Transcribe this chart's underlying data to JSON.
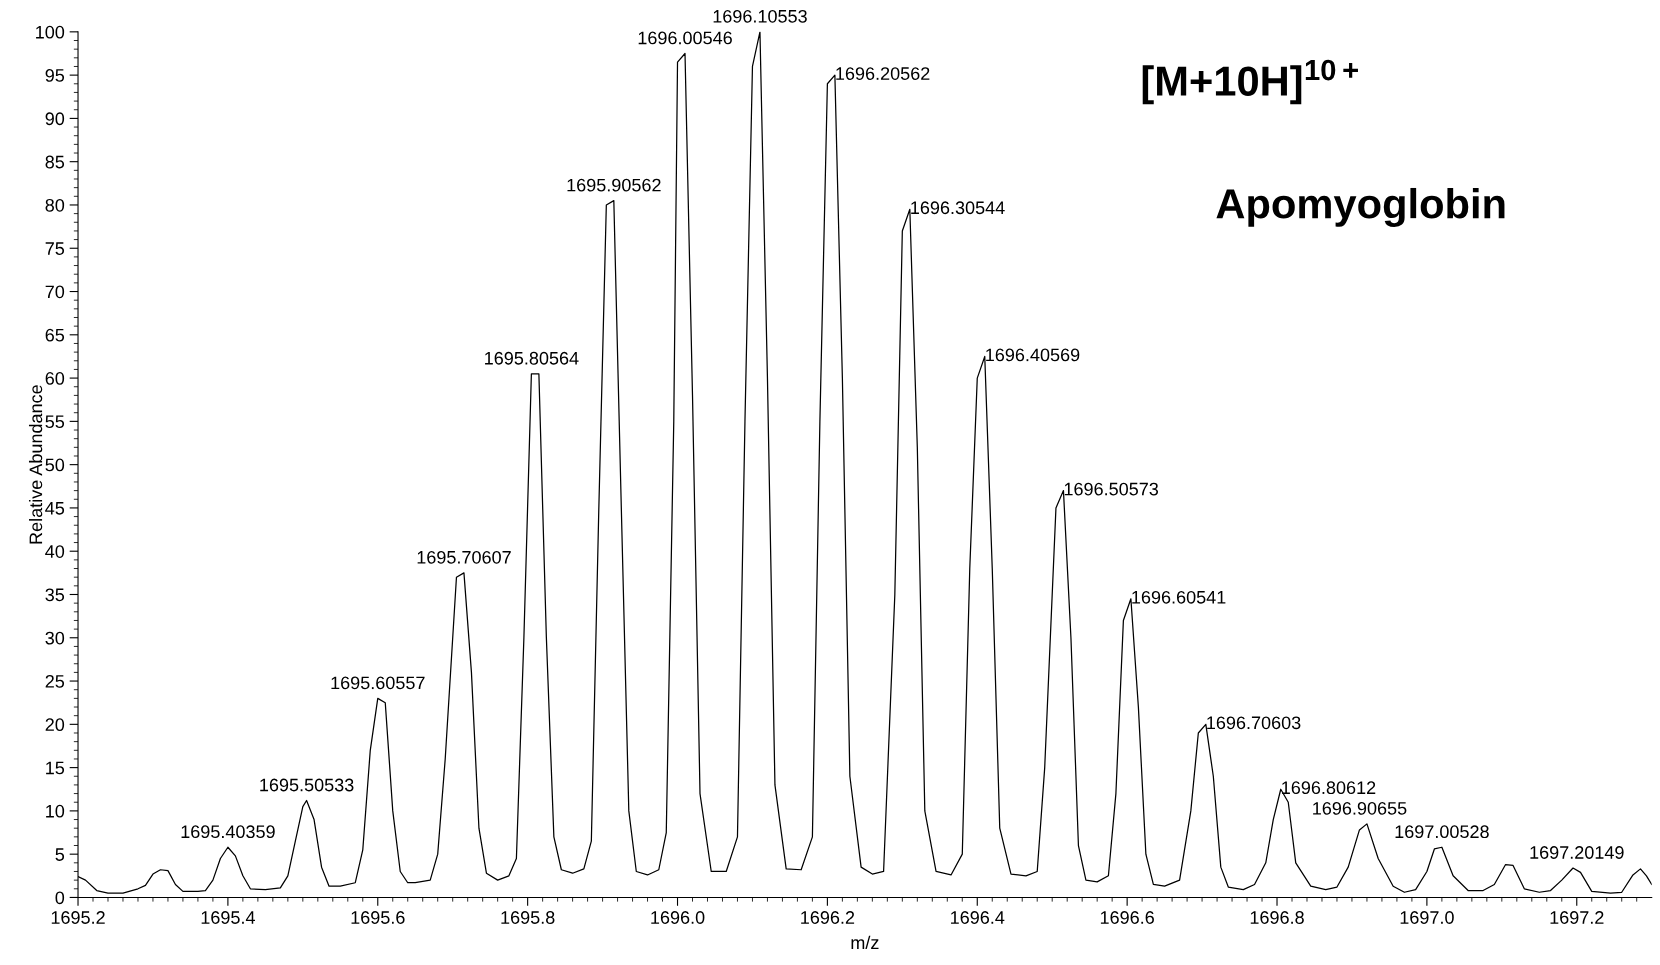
{
  "chart_data": {
    "type": "line",
    "xlabel": "m/z",
    "ylabel": "Relative Abundance",
    "xlim": [
      1695.2,
      1697.3
    ],
    "xticks": [
      {
        "value": 1695.2,
        "label": "1695.2"
      },
      {
        "value": 1695.4,
        "label": "1695.4"
      },
      {
        "value": 1695.6,
        "label": "1695.6"
      },
      {
        "value": 1695.8,
        "label": "1695.8"
      },
      {
        "value": 1696.0,
        "label": "1696.0"
      },
      {
        "value": 1696.2,
        "label": "1696.2"
      },
      {
        "value": 1696.4,
        "label": "1696.4"
      },
      {
        "value": 1696.6,
        "label": "1696.6"
      },
      {
        "value": 1696.8,
        "label": "1696.8"
      },
      {
        "value": 1697.0,
        "label": "1697.0"
      },
      {
        "value": 1697.2,
        "label": "1697.2"
      }
    ],
    "ylim": [
      0,
      100
    ],
    "yticks": [
      0,
      5,
      10,
      15,
      20,
      25,
      30,
      35,
      40,
      45,
      50,
      55,
      60,
      65,
      70,
      75,
      80,
      85,
      90,
      95,
      100
    ],
    "grid": false,
    "legend": false,
    "marker": "none",
    "line_style": "solid",
    "series": [
      {
        "color": "#000000",
        "x": [
          1695.2,
          1695.21,
          1695.225,
          1695.24,
          1695.26,
          1695.28,
          1695.29,
          1695.3,
          1695.31,
          1695.32,
          1695.33,
          1695.34,
          1695.36,
          1695.37,
          1695.38,
          1695.39,
          1695.4,
          1695.41,
          1695.42,
          1695.43,
          1695.45,
          1695.47,
          1695.48,
          1695.49,
          1695.5,
          1695.505,
          1695.515,
          1695.525,
          1695.535,
          1695.55,
          1695.57,
          1695.58,
          1695.59,
          1695.6,
          1695.61,
          1695.62,
          1695.63,
          1695.64,
          1695.65,
          1695.67,
          1695.68,
          1695.69,
          1695.705,
          1695.715,
          1695.725,
          1695.735,
          1695.745,
          1695.76,
          1695.775,
          1695.785,
          1695.795,
          1695.805,
          1695.815,
          1695.825,
          1695.835,
          1695.845,
          1695.86,
          1695.875,
          1695.885,
          1695.895,
          1695.905,
          1695.915,
          1695.925,
          1695.935,
          1695.945,
          1695.96,
          1695.975,
          1695.985,
          1695.995,
          1696.0,
          1696.01,
          1696.02,
          1696.03,
          1696.045,
          1696.065,
          1696.08,
          1696.09,
          1696.1,
          1696.11,
          1696.12,
          1696.13,
          1696.145,
          1696.165,
          1696.18,
          1696.19,
          1696.2,
          1696.21,
          1696.22,
          1696.23,
          1696.245,
          1696.26,
          1696.275,
          1696.29,
          1696.3,
          1696.31,
          1696.32,
          1696.33,
          1696.345,
          1696.365,
          1696.38,
          1696.39,
          1696.4,
          1696.41,
          1696.42,
          1696.43,
          1696.445,
          1696.465,
          1696.48,
          1696.49,
          1696.505,
          1696.515,
          1696.525,
          1696.535,
          1696.545,
          1696.56,
          1696.575,
          1696.585,
          1696.595,
          1696.605,
          1696.615,
          1696.625,
          1696.635,
          1696.65,
          1696.67,
          1696.685,
          1696.695,
          1696.705,
          1696.715,
          1696.725,
          1696.735,
          1696.755,
          1696.77,
          1696.785,
          1696.795,
          1696.805,
          1696.815,
          1696.825,
          1696.845,
          1696.865,
          1696.88,
          1696.895,
          1696.91,
          1696.92,
          1696.935,
          1696.955,
          1696.97,
          1696.985,
          1697.0,
          1697.01,
          1697.02,
          1697.035,
          1697.055,
          1697.075,
          1697.09,
          1697.105,
          1697.115,
          1697.13,
          1697.15,
          1697.165,
          1697.18,
          1697.195,
          1697.205,
          1697.22,
          1697.245,
          1697.26,
          1697.275,
          1697.285,
          1697.293,
          1697.3
        ],
        "values": [
          2.4,
          2.0,
          0.8,
          0.5,
          0.5,
          1.0,
          1.4,
          2.7,
          3.2,
          3.1,
          1.5,
          0.7,
          0.7,
          0.8,
          2.0,
          4.5,
          5.8,
          4.8,
          2.5,
          1.0,
          0.9,
          1.1,
          2.5,
          6.5,
          10.5,
          11.2,
          9.0,
          3.5,
          1.3,
          1.3,
          1.7,
          5.5,
          17.0,
          23.0,
          22.5,
          10.0,
          3.0,
          1.7,
          1.7,
          2.0,
          5.0,
          16.0,
          37.0,
          37.5,
          26.0,
          8.0,
          2.8,
          2.0,
          2.5,
          4.5,
          30.0,
          60.5,
          60.5,
          30.0,
          7.0,
          3.2,
          2.8,
          3.3,
          6.5,
          45.0,
          80.0,
          80.5,
          45.0,
          10.0,
          3.0,
          2.6,
          3.2,
          7.5,
          55.0,
          96.5,
          97.5,
          58.0,
          12.0,
          3.0,
          3.0,
          7.0,
          55.0,
          96.0,
          100.0,
          60.0,
          13.0,
          3.3,
          3.2,
          7.0,
          55.0,
          94.0,
          95.0,
          60.0,
          14.0,
          3.5,
          2.7,
          3.0,
          35.0,
          77.0,
          79.5,
          52.0,
          10.0,
          3.0,
          2.6,
          5.0,
          38.0,
          60.0,
          62.5,
          38.0,
          8.0,
          2.7,
          2.5,
          3.0,
          15.0,
          45.0,
          47.0,
          30.0,
          6.0,
          2.0,
          1.8,
          2.5,
          12.0,
          32.0,
          34.5,
          22.0,
          5.0,
          1.5,
          1.3,
          2.0,
          10.0,
          19.0,
          20.0,
          14.0,
          3.5,
          1.2,
          0.9,
          1.5,
          4.0,
          9.0,
          12.5,
          11.0,
          4.0,
          1.3,
          0.9,
          1.2,
          3.5,
          7.8,
          8.5,
          4.5,
          1.3,
          0.6,
          0.9,
          3.0,
          5.6,
          5.8,
          2.5,
          0.8,
          0.8,
          1.5,
          3.8,
          3.7,
          1.0,
          0.6,
          0.8,
          2.0,
          3.4,
          2.9,
          0.7,
          0.5,
          0.6,
          2.6,
          3.3,
          2.5,
          1.5
        ]
      }
    ],
    "annotations": [
      "[M+10H]$^{10+}$",
      "Apomyoglobin",
      {
        "text": "1695.40359",
        "x": 1695.4,
        "y": 5.8
      },
      {
        "text": "1695.50533",
        "x": 1695.505,
        "y": 11.2
      },
      {
        "text": "1695.60557",
        "x": 1695.6,
        "y": 23.0
      },
      {
        "text": "1695.70607",
        "x": 1695.715,
        "y": 37.5
      },
      {
        "text": "1695.80564",
        "x": 1695.805,
        "y": 60.5
      },
      {
        "text": "1695.90562",
        "x": 1695.915,
        "y": 80.5
      },
      {
        "text": "1696.00546",
        "x": 1696.01,
        "y": 97.5
      },
      {
        "text": "1696.10553",
        "x": 1696.11,
        "y": 100.0
      },
      {
        "text": "1696.20562",
        "x": 1696.21,
        "y": 95.0
      },
      {
        "text": "1696.30544",
        "x": 1696.31,
        "y": 79.5
      },
      {
        "text": "1696.40569",
        "x": 1696.41,
        "y": 62.5
      },
      {
        "text": "1696.50573",
        "x": 1696.515,
        "y": 47.0
      },
      {
        "text": "1696.60541",
        "x": 1696.605,
        "y": 34.5
      },
      {
        "text": "1696.70603",
        "x": 1696.705,
        "y": 20.0
      },
      {
        "text": "1696.80612",
        "x": 1696.805,
        "y": 12.5
      },
      {
        "text": "1696.90655",
        "x": 1696.91,
        "y": 8.5
      },
      {
        "text": "1697.00528",
        "x": 1697.02,
        "y": 5.8
      },
      {
        "text": "1697.20149",
        "x": 1697.2,
        "y": 3.4
      }
    ]
  }
}
